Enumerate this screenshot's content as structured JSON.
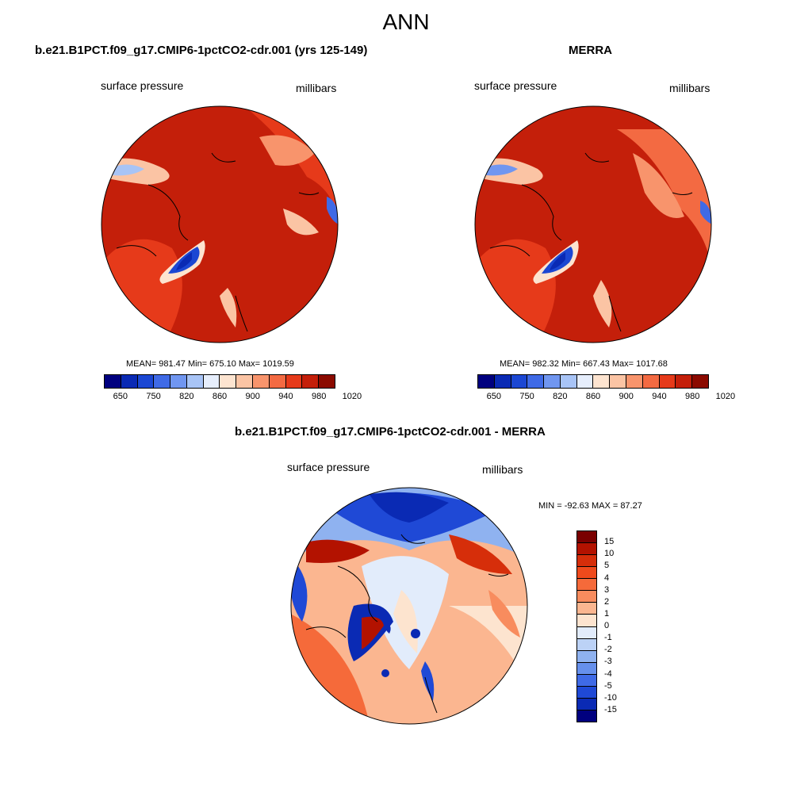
{
  "title": "ANN",
  "panels": [
    {
      "title": "b.e21.B1PCT.f09_g17.CMIP6-1pctCO2-cdr.001 (yrs 125-149)",
      "left_label": "surface pressure",
      "right_label": "millibars",
      "stats": "MEAN= 981.47  Min= 675.10  Max= 1019.59"
    },
    {
      "title": "MERRA",
      "left_label": "surface pressure",
      "right_label": "millibars",
      "stats": "MEAN= 982.32  Min= 667.43  Max= 1017.68"
    },
    {
      "title": "b.e21.B1PCT.f09_g17.CMIP6-1pctCO2-cdr.001 - MERRA",
      "left_label": "surface pressure",
      "right_label": "millibars",
      "stats": "MIN = -92.63 MAX =  87.27"
    }
  ],
  "colorbar_abs": {
    "tick_labels": [
      "650",
      "750",
      "820",
      "860",
      "900",
      "940",
      "980",
      "1020"
    ],
    "colors": [
      "#00007f",
      "#0a2ab4",
      "#1b47d3",
      "#3f6ae6",
      "#7096f0",
      "#a8c4f6",
      "#e6eefc",
      "#fde4d0",
      "#fbc4a4",
      "#f8946c",
      "#f36a42",
      "#e63a1a",
      "#c41f0a",
      "#8b0a00"
    ]
  },
  "colorbar_diff": {
    "tick_labels": [
      "15",
      "10",
      "5",
      "4",
      "3",
      "2",
      "1",
      "0",
      "-1",
      "-2",
      "-3",
      "-4",
      "-5",
      "-10",
      "-15"
    ],
    "colors": [
      "#7a0000",
      "#b31200",
      "#d62e0a",
      "#ef4a1c",
      "#f56a3a",
      "#f88c5e",
      "#fbb690",
      "#fde4cf",
      "#e2ecfb",
      "#bcd2f6",
      "#8fb2f0",
      "#6690ec",
      "#3f6ae6",
      "#1f49d6",
      "#0a2ab4",
      "#00007f"
    ]
  }
}
